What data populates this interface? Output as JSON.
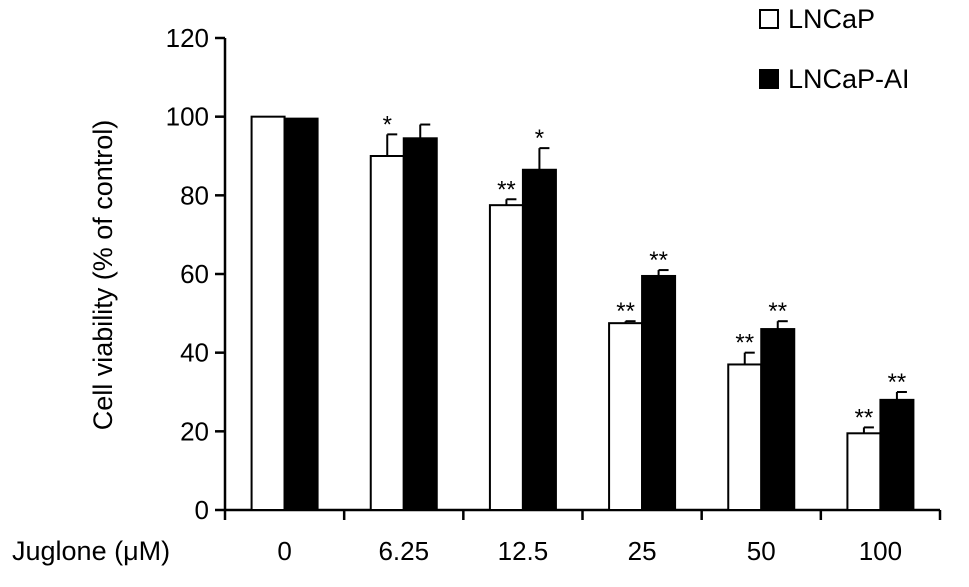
{
  "chart_data": {
    "type": "bar",
    "title": "",
    "xlabel": "Juglone (μM)",
    "ylabel": "Cell viability (% of control)",
    "categories": [
      "0",
      "6.25",
      "12.5",
      "25",
      "50",
      "100"
    ],
    "ylim": [
      0,
      120
    ],
    "yticks": [
      "0",
      "20",
      "40",
      "60",
      "80",
      "100",
      "120"
    ],
    "legend_position": "top-right",
    "grid": false,
    "series": [
      {
        "name": "LNCaP",
        "color": "#ffffff",
        "values": [
          100,
          90,
          77.5,
          47.5,
          37,
          19.5
        ],
        "errors": [
          0,
          5.5,
          1.5,
          0.5,
          3,
          1.5
        ],
        "significance": [
          "",
          "*",
          "**",
          "**",
          "**",
          "**"
        ]
      },
      {
        "name": "LNCaP-AI",
        "color": "#000000",
        "values": [
          99.5,
          94.5,
          86.5,
          59.5,
          46,
          28
        ],
        "errors": [
          0,
          3.5,
          5.5,
          1.5,
          2,
          2
        ],
        "significance": [
          "",
          "",
          "*",
          "**",
          "**",
          "**"
        ]
      }
    ]
  }
}
